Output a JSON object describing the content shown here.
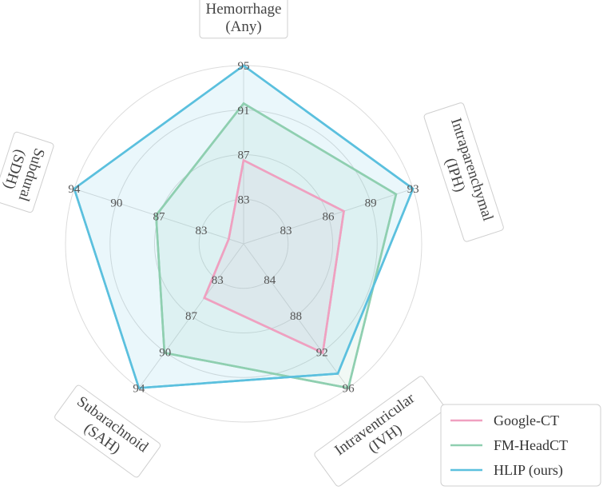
{
  "chart_data": {
    "type": "radar",
    "axes": [
      {
        "label_lines": [
          "Hemorrhage",
          "(Any)"
        ],
        "ticks": [
          "83",
          "87",
          "91",
          "95"
        ]
      },
      {
        "label_lines": [
          "Intraparenchymal",
          "(IPH)"
        ],
        "ticks": [
          "83",
          "86",
          "89",
          "93"
        ]
      },
      {
        "label_lines": [
          "Intraventricular",
          "(IVH)"
        ],
        "ticks": [
          "84",
          "88",
          "92",
          "96"
        ]
      },
      {
        "label_lines": [
          "Subarachnoid",
          "(SAH)"
        ],
        "ticks": [
          "83",
          "87",
          "90",
          "94"
        ]
      },
      {
        "label_lines": [
          "Subdural",
          "(SDH)"
        ],
        "ticks": [
          "83",
          "87",
          "90",
          "94"
        ]
      }
    ],
    "series": [
      {
        "name": "Google-CT",
        "color": "#f0a0c0",
        "values": [
          86.5,
          87.1,
          92.1,
          85.0,
          80.4
        ]
      },
      {
        "name": "FM-HeadCT",
        "color": "#8fcfb0",
        "values": [
          91.6,
          91.4,
          96.0,
          90.1,
          87.2
        ]
      },
      {
        "name": "HLIP (ours)",
        "color": "#5bc0de",
        "values": [
          95.0,
          93.0,
          94.4,
          94.0,
          94.0
        ]
      }
    ],
    "grid": true,
    "legend": "bottom-right"
  }
}
